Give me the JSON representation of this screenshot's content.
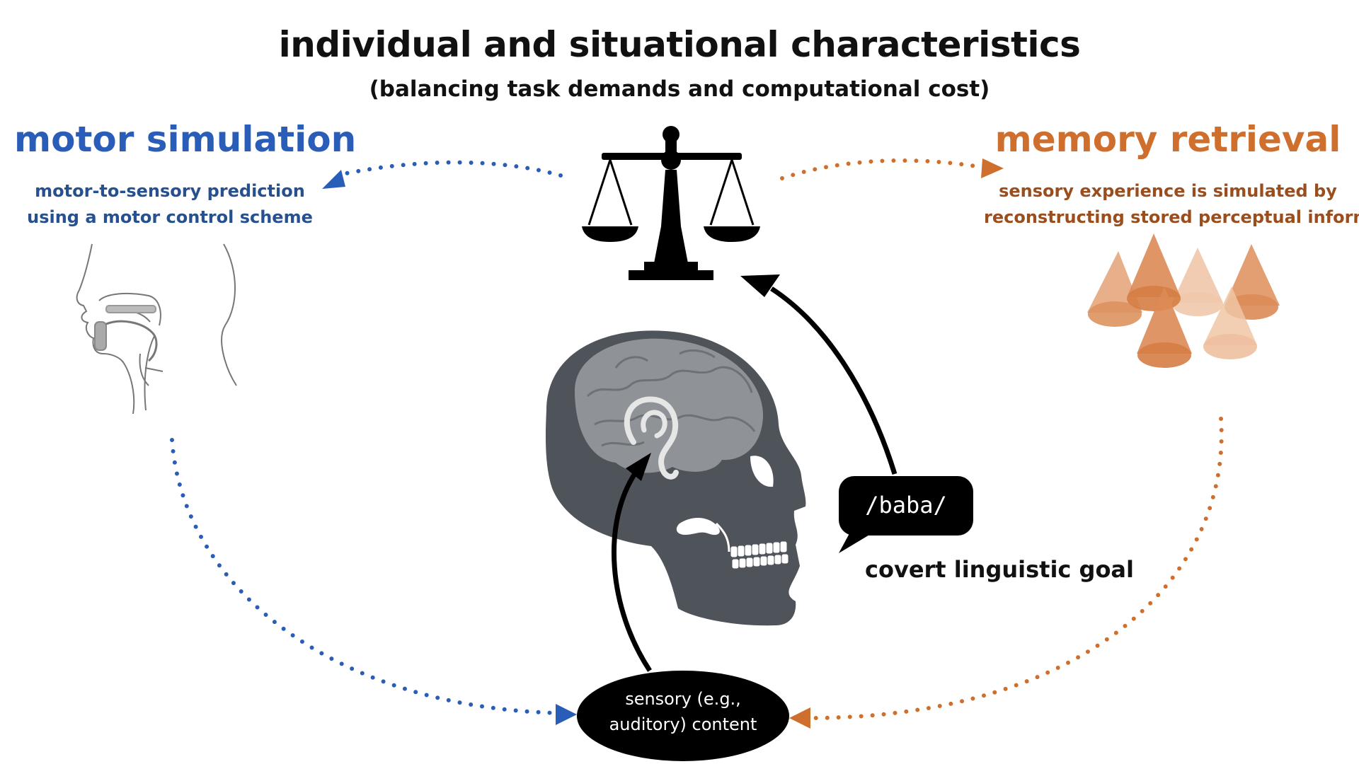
{
  "header": {
    "title": "individual and situational characteristics",
    "subtitle": "(balancing task demands and computational cost)"
  },
  "motor": {
    "title": "motor simulation",
    "desc_line1": "motor-to-sensory prediction",
    "desc_line2": "using a motor control scheme"
  },
  "memory": {
    "title": "memory retrieval",
    "desc_line1": "sensory experience is simulated by",
    "desc_line2": "reconstructing stored perceptual information"
  },
  "goal": {
    "bubble_text": "/baba/",
    "label": "covert linguistic goal"
  },
  "sensory": {
    "line1": "sensory (e.g.,",
    "line2": "auditory) content"
  },
  "colors": {
    "motor": "#2a5db8",
    "memory": "#cf6f2e",
    "skull": "#4f535a",
    "brain": "#8f9296"
  },
  "icons": {
    "balance": "balance-scale-icon",
    "head": "vocal-tract-head-icon",
    "cones": "cones-icon",
    "skull": "skull-brain-icon",
    "ear": "ear-icon"
  }
}
